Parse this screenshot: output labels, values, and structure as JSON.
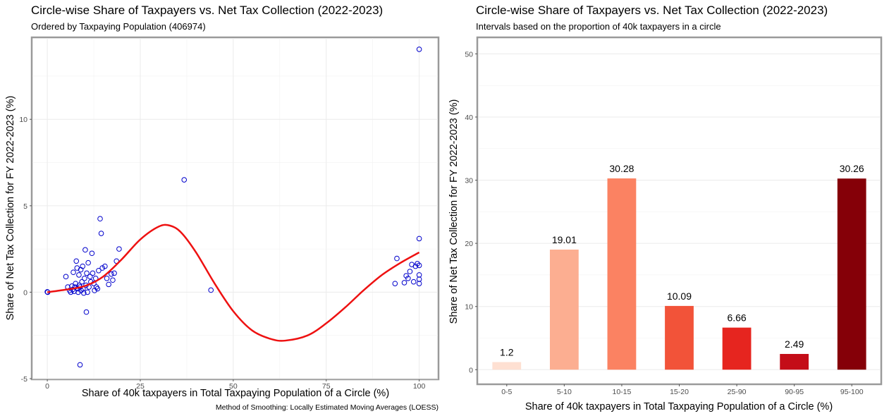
{
  "chart_data": [
    {
      "type": "scatter",
      "title": "Circle-wise Share of Taxpayers vs. Net Tax Collection (2022-2023)",
      "subtitle": "Ordered by Taxpaying Population (406974)",
      "xlabel": "Share of 40k taxpayers in Total Taxpaying Population of a Circle (%)",
      "ylabel": "Share of Net Tax Collection for FY 2022-2023 (%)",
      "caption": "Method of Smoothing: Locally Estimated Moving Averages (LOESS)",
      "xlim": [
        -4,
        105
      ],
      "ylim": [
        -5,
        14.7
      ],
      "x_ticks": [
        0,
        25,
        50,
        75,
        100
      ],
      "y_ticks": [
        -5,
        0,
        5,
        10
      ],
      "x_tick_labels": [
        "0",
        "25",
        "50",
        "75",
        "100"
      ],
      "y_tick_labels": [
        "-5",
        "0",
        "5",
        "10"
      ],
      "grid": true,
      "point_color": "#0000cc",
      "smooth_color": "#ee1111",
      "points": [
        {
          "x": 0,
          "y": 0.02
        },
        {
          "x": 0.1,
          "y": 0.0
        },
        {
          "x": 8.8,
          "y": -4.2
        },
        {
          "x": 10.5,
          "y": -1.15
        },
        {
          "x": 5,
          "y": 0.9
        },
        {
          "x": 5.5,
          "y": 0.3
        },
        {
          "x": 6,
          "y": 0.1
        },
        {
          "x": 6.3,
          "y": 0.0
        },
        {
          "x": 6.6,
          "y": 0.35
        },
        {
          "x": 6.8,
          "y": 0.15
        },
        {
          "x": 7,
          "y": 1.15
        },
        {
          "x": 7.2,
          "y": 0.05
        },
        {
          "x": 7.4,
          "y": 0.3
        },
        {
          "x": 7.6,
          "y": 0.5
        },
        {
          "x": 7.8,
          "y": 1.8
        },
        {
          "x": 8,
          "y": 1.4
        },
        {
          "x": 8.1,
          "y": 0.2
        },
        {
          "x": 8.3,
          "y": 0.0
        },
        {
          "x": 8.5,
          "y": 1.0
        },
        {
          "x": 8.6,
          "y": 0.4
        },
        {
          "x": 8.8,
          "y": 0.3
        },
        {
          "x": 9,
          "y": 1.3
        },
        {
          "x": 9.1,
          "y": 0.1
        },
        {
          "x": 9.3,
          "y": 0.6
        },
        {
          "x": 9.5,
          "y": 1.5
        },
        {
          "x": 9.6,
          "y": 0.2
        },
        {
          "x": 9.8,
          "y": -0.05
        },
        {
          "x": 10,
          "y": 0.8
        },
        {
          "x": 10.2,
          "y": 2.45
        },
        {
          "x": 10.4,
          "y": 0.4
        },
        {
          "x": 10.6,
          "y": 1.1
        },
        {
          "x": 10.8,
          "y": 0.0
        },
        {
          "x": 11,
          "y": 1.7
        },
        {
          "x": 11.2,
          "y": 0.3
        },
        {
          "x": 11.5,
          "y": 0.9
        },
        {
          "x": 11.7,
          "y": 0.6
        },
        {
          "x": 12,
          "y": 2.25
        },
        {
          "x": 12.2,
          "y": 1.1
        },
        {
          "x": 12.5,
          "y": 0.5
        },
        {
          "x": 12.7,
          "y": 0.1
        },
        {
          "x": 13,
          "y": 0.8
        },
        {
          "x": 13.2,
          "y": 0.3
        },
        {
          "x": 13.5,
          "y": 0.2
        },
        {
          "x": 13.8,
          "y": 1.25
        },
        {
          "x": 14.2,
          "y": 4.25
        },
        {
          "x": 14.5,
          "y": 3.4
        },
        {
          "x": 14.8,
          "y": 1.4
        },
        {
          "x": 15.5,
          "y": 1.5
        },
        {
          "x": 16,
          "y": 0.8
        },
        {
          "x": 16.5,
          "y": 0.45
        },
        {
          "x": 17.2,
          "y": 1.05
        },
        {
          "x": 17.6,
          "y": 0.7
        },
        {
          "x": 18,
          "y": 1.1
        },
        {
          "x": 18.6,
          "y": 1.8
        },
        {
          "x": 19.3,
          "y": 2.5
        },
        {
          "x": 36.8,
          "y": 6.5
        },
        {
          "x": 44,
          "y": 0.12
        },
        {
          "x": 93.5,
          "y": 0.5
        },
        {
          "x": 94,
          "y": 1.95
        },
        {
          "x": 96,
          "y": 0.55
        },
        {
          "x": 96.5,
          "y": 0.95
        },
        {
          "x": 97,
          "y": 0.8
        },
        {
          "x": 97.5,
          "y": 1.2
        },
        {
          "x": 98,
          "y": 1.6
        },
        {
          "x": 98.5,
          "y": 0.6
        },
        {
          "x": 99,
          "y": 1.5
        },
        {
          "x": 99.5,
          "y": 1.65
        },
        {
          "x": 100,
          "y": 14.05
        },
        {
          "x": 100,
          "y": 3.1
        },
        {
          "x": 100,
          "y": 1.55
        },
        {
          "x": 100,
          "y": 1.0
        },
        {
          "x": 100,
          "y": 0.75
        },
        {
          "x": 100,
          "y": 0.5
        }
      ],
      "smooth_curve": [
        {
          "x": 0,
          "y": 0.0
        },
        {
          "x": 5,
          "y": 0.15
        },
        {
          "x": 10,
          "y": 0.35
        },
        {
          "x": 15,
          "y": 0.9
        },
        {
          "x": 20,
          "y": 1.9
        },
        {
          "x": 25,
          "y": 3.05
        },
        {
          "x": 30,
          "y": 3.8
        },
        {
          "x": 33,
          "y": 3.85
        },
        {
          "x": 36,
          "y": 3.45
        },
        {
          "x": 40,
          "y": 2.3
        },
        {
          "x": 45,
          "y": 0.5
        },
        {
          "x": 50,
          "y": -1.1
        },
        {
          "x": 55,
          "y": -2.2
        },
        {
          "x": 60,
          "y": -2.7
        },
        {
          "x": 64,
          "y": -2.8
        },
        {
          "x": 70,
          "y": -2.5
        },
        {
          "x": 75,
          "y": -1.8
        },
        {
          "x": 80,
          "y": -0.9
        },
        {
          "x": 85,
          "y": 0.1
        },
        {
          "x": 90,
          "y": 1.0
        },
        {
          "x": 95,
          "y": 1.7
        },
        {
          "x": 100,
          "y": 2.3
        }
      ]
    },
    {
      "type": "bar",
      "title": "Circle-wise Share of Taxpayers vs. Net Tax Collection (2022-2023)",
      "subtitle": "Intervals based on the proportion of 40k taxpayers in a circle",
      "xlabel": "Share of 40k taxpayers in Total Taxpaying Population of a Circle (%)",
      "ylabel": "Share of Net Tax Collection for FY 2022-2023 (%)",
      "categories": [
        "0-5",
        "5-10",
        "10-15",
        "15-20",
        "25-90",
        "90-95",
        "95-100"
      ],
      "values": [
        1.2,
        19.01,
        30.28,
        10.09,
        6.66,
        2.49,
        30.26
      ],
      "value_labels": [
        "1.2",
        "19.01",
        "30.28",
        "10.09",
        "6.66",
        "2.49",
        "30.26"
      ],
      "colors": [
        "#fee0d2",
        "#fcae91",
        "#fb8262",
        "#f25339",
        "#e6251f",
        "#c40d18",
        "#850008"
      ],
      "ylim": [
        -2.2,
        52.5
      ],
      "y_ticks": [
        0,
        10,
        20,
        30,
        40,
        50
      ],
      "y_tick_labels": [
        "0",
        "10",
        "20",
        "30",
        "40",
        "50"
      ],
      "grid": true
    }
  ]
}
